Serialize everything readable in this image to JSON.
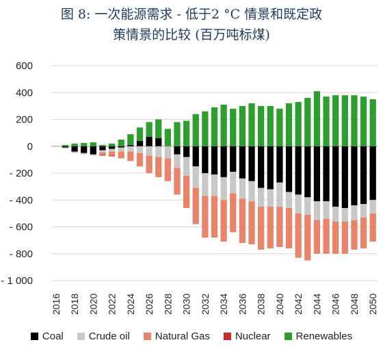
{
  "chart_data": {
    "type": "bar",
    "stacked": true,
    "title_lines": [
      "图 8: 一次能源需求 - 低于2 °C 情景和既定政",
      "策情景的比较 (百万吨标煤)"
    ],
    "x": [
      2016,
      2017,
      2018,
      2019,
      2020,
      2021,
      2022,
      2023,
      2024,
      2025,
      2026,
      2027,
      2028,
      2029,
      2030,
      2031,
      2032,
      2033,
      2034,
      2035,
      2036,
      2037,
      2038,
      2039,
      2040,
      2041,
      2042,
      2043,
      2044,
      2045,
      2046,
      2047,
      2048,
      2049,
      2050
    ],
    "x_tick_labels": [
      "2016",
      "2018",
      "2020",
      "2022",
      "2024",
      "2026",
      "2028",
      "2030",
      "2032",
      "2034",
      "2036",
      "2038",
      "2040",
      "2042",
      "2044",
      "2046",
      "2048",
      "2050"
    ],
    "y_tick_labels": [
      "600",
      "400",
      "200",
      "0",
      "- 200",
      "- 400",
      "- 600",
      "- 800",
      "- 1 000"
    ],
    "ylim": [
      -1000,
      600
    ],
    "grid": true,
    "legend_position": "bottom",
    "series": [
      {
        "name": "Coal",
        "color": "#000000",
        "values": [
          0,
          -10,
          -40,
          -50,
          -60,
          -30,
          -20,
          -10,
          10,
          40,
          70,
          60,
          0,
          -60,
          -80,
          -150,
          -200,
          -210,
          -230,
          -190,
          -240,
          -260,
          -310,
          -320,
          -270,
          -340,
          -360,
          -380,
          -410,
          -410,
          -450,
          -460,
          -440,
          -430,
          -400
        ]
      },
      {
        "name": "Crude oil",
        "color": "#c8c8c8",
        "values": [
          0,
          -5,
          -10,
          -10,
          -10,
          -15,
          -20,
          -30,
          -40,
          -50,
          -70,
          -80,
          -90,
          -100,
          -140,
          -160,
          -170,
          -160,
          -170,
          -160,
          -150,
          -150,
          -140,
          -130,
          -180,
          -120,
          -140,
          -130,
          -140,
          -130,
          -110,
          -100,
          -110,
          -100,
          -100
        ]
      },
      {
        "name": "Natural Gas",
        "color": "#e8846a",
        "values": [
          0,
          0,
          0,
          0,
          0,
          -20,
          -30,
          -50,
          -70,
          -100,
          -130,
          -150,
          -170,
          -200,
          -240,
          -270,
          -310,
          -310,
          -310,
          -290,
          -330,
          -320,
          -320,
          -310,
          -300,
          -300,
          -330,
          -340,
          -250,
          -260,
          -240,
          -240,
          -220,
          -230,
          -210
        ]
      },
      {
        "name": "Nuclear",
        "color": "#cc2a2a",
        "values": [
          0,
          0,
          0,
          0,
          0,
          -5,
          -5,
          0,
          0,
          0,
          0,
          0,
          0,
          0,
          0,
          0,
          0,
          0,
          0,
          0,
          0,
          0,
          0,
          0,
          0,
          0,
          0,
          0,
          0,
          0,
          0,
          0,
          0,
          0,
          0
        ]
      },
      {
        "name": "Renewables",
        "color": "#2e9e2e",
        "values": [
          0,
          10,
          20,
          25,
          30,
          10,
          20,
          50,
          80,
          100,
          110,
          140,
          130,
          180,
          190,
          240,
          260,
          290,
          310,
          280,
          300,
          320,
          300,
          300,
          280,
          320,
          330,
          360,
          410,
          370,
          380,
          380,
          380,
          370,
          350
        ]
      }
    ]
  }
}
